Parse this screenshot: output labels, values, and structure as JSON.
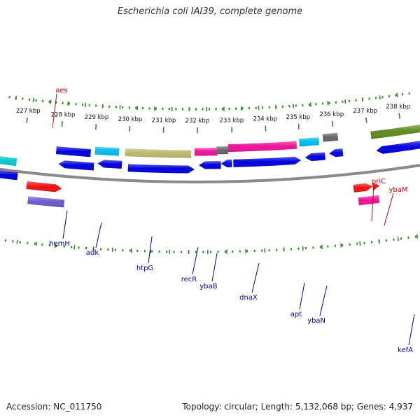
{
  "title": "Escherichia coli IAI39, complete genome",
  "footer": {
    "accession": "Accession: NC_011750",
    "topology": "Topology: circular; Length: 5,132,068 bp; Genes: 4,937"
  },
  "ticks": [
    "227 kbp",
    "228 kbp",
    "229 kbp",
    "230 kbp",
    "231 kbp",
    "232 kbp",
    "233 kbp",
    "234 kbp",
    "235 kbp",
    "236 kbp",
    "237 kbp",
    "238 kbp"
  ],
  "gene_labels_top": [
    {
      "name": "aes",
      "color": "#cc0000"
    },
    {
      "name": "priC",
      "color": "#cc0000"
    },
    {
      "name": "ybaM",
      "color": "#cc0000"
    }
  ],
  "gene_labels_bottom": [
    {
      "name": "hemH",
      "color": "#0000aa"
    },
    {
      "name": "adk",
      "color": "#0000aa"
    },
    {
      "name": "htpG",
      "color": "#0000aa"
    },
    {
      "name": "recR",
      "color": "#0000aa"
    },
    {
      "name": "ybaB",
      "color": "#0000aa"
    },
    {
      "name": "dnaX",
      "color": "#0000aa"
    },
    {
      "name": "apt",
      "color": "#0000aa"
    },
    {
      "name": "ybaN",
      "color": "#0000aa"
    },
    {
      "name": "kefA",
      "color": "#0000aa"
    }
  ],
  "colors": {
    "backbone": "#8a8a8a",
    "ticks": "#2e8b22",
    "cds_blue": "#0000dd",
    "cds_red": "#ee1111",
    "cds_purple": "#6a5acd",
    "cds_pink": "#ee1199",
    "cds_cyan": "#00bbee",
    "cds_khaki": "#bdb76b",
    "cds_gray": "#666666",
    "cds_olive": "#5f8a1e",
    "cds_teal": "#00cccc"
  }
}
